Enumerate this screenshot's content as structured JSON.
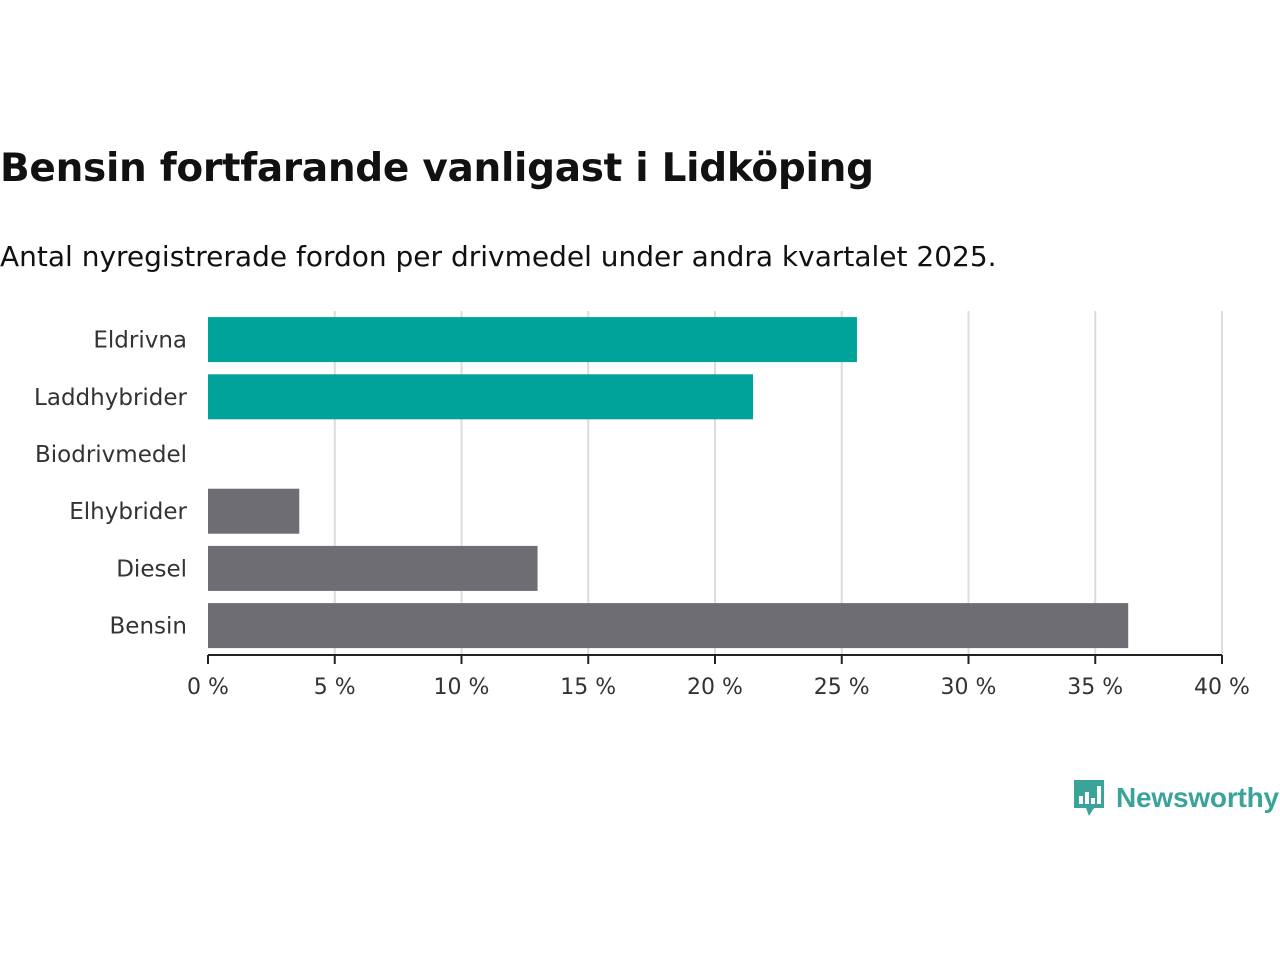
{
  "chart_data": {
    "type": "bar",
    "orientation": "horizontal",
    "title": "Bensin fortfarande vanligast i Lidköping",
    "subtitle": "Antal nyregistrerade fordon per drivmedel under andra kvartalet 2025.",
    "categories": [
      "Eldrivna",
      "Laddhybrider",
      "Biodrivmedel",
      "Elhybrider",
      "Diesel",
      "Bensin"
    ],
    "values": [
      25.6,
      21.5,
      0,
      3.6,
      13.0,
      36.3
    ],
    "colors": [
      "#00a39a",
      "#00a39a",
      "#6e6d74",
      "#6e6d74",
      "#6e6d74",
      "#6e6d74"
    ],
    "xlim": [
      0,
      40
    ],
    "xticks": [
      0,
      5,
      10,
      15,
      20,
      25,
      30,
      35,
      40
    ],
    "xtick_labels": [
      "0 %",
      "5 %",
      "10 %",
      "15 %",
      "20 %",
      "25 %",
      "30 %",
      "35 %",
      "40 %"
    ],
    "xlabel": "",
    "ylabel": "",
    "grid": true,
    "legend": "none"
  },
  "brand": {
    "name": "Newsworthy",
    "icon": "newsworthy-logo-icon",
    "color": "#3aa39a"
  }
}
